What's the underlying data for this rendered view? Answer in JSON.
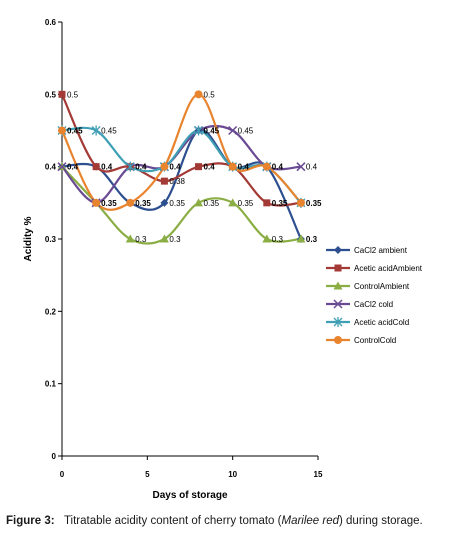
{
  "chart_data": {
    "type": "line",
    "xlabel": "Days of storage",
    "ylabel": "Acidity %",
    "xlim": [
      0,
      15
    ],
    "ylim": [
      0,
      0.6
    ],
    "x_ticks": [
      "0",
      "5",
      "10",
      "15"
    ],
    "y_ticks": [
      "0",
      "0.1",
      "0.2",
      "0.3",
      "0.4",
      "0.5",
      "0.6"
    ],
    "smooth": true,
    "grid": false,
    "legend_position": "right",
    "series": [
      {
        "name": "CaCl2 ambient",
        "color": "#2E4F8F",
        "marker": "diamond",
        "x": [
          0,
          2,
          4,
          6,
          8,
          10,
          12,
          14
        ],
        "values": [
          0.4,
          0.4,
          0.35,
          0.35,
          0.45,
          0.4,
          0.4,
          0.3
        ]
      },
      {
        "name": "Acetic acidAmbient",
        "color": "#A33A36",
        "marker": "square",
        "x": [
          0,
          2,
          4,
          6,
          8,
          10,
          12,
          14
        ],
        "values": [
          0.5,
          0.4,
          0.4,
          0.38,
          0.4,
          0.4,
          0.35,
          0.35
        ]
      },
      {
        "name": "ControlAmbient",
        "color": "#8AAE44",
        "marker": "triangle",
        "x": [
          0,
          2,
          4,
          6,
          8,
          10,
          12,
          14
        ],
        "values": [
          0.4,
          0.35,
          0.3,
          0.3,
          0.35,
          0.35,
          0.3,
          0.3
        ]
      },
      {
        "name": "CaCl2 cold",
        "color": "#6A4A93",
        "marker": "x",
        "x": [
          0,
          2,
          4,
          6,
          8,
          10,
          12,
          14
        ],
        "values": [
          0.4,
          0.35,
          0.4,
          0.4,
          0.45,
          0.45,
          0.4,
          0.4
        ]
      },
      {
        "name": "Acetic acidCold",
        "color": "#3E9FB5",
        "marker": "star",
        "x": [
          0,
          2,
          4,
          6,
          8,
          10,
          12,
          14
        ],
        "values": [
          0.45,
          0.45,
          0.4,
          0.4,
          0.45,
          0.4,
          0.4,
          0.35
        ]
      },
      {
        "name": "ControlCold",
        "color": "#E8832E",
        "marker": "circle",
        "x": [
          0,
          2,
          4,
          6,
          8,
          10,
          12,
          14
        ],
        "values": [
          0.45,
          0.35,
          0.35,
          0.4,
          0.5,
          0.4,
          0.4,
          0.35
        ]
      }
    ],
    "data_labels": [
      {
        "x": 0,
        "y": 0.5,
        "text": "0.5",
        "bold": false
      },
      {
        "x": 0,
        "y": 0.45,
        "text": "0.45",
        "bold": true
      },
      {
        "x": 2,
        "y": 0.45,
        "text": "0.45",
        "bold": false
      },
      {
        "x": 0,
        "y": 0.4,
        "text": "0.4",
        "bold": true
      },
      {
        "x": 2,
        "y": 0.4,
        "text": "0.4",
        "bold": true
      },
      {
        "x": 4,
        "y": 0.4,
        "text": "0.4",
        "bold": true
      },
      {
        "x": 6,
        "y": 0.4,
        "text": "0.4",
        "bold": true
      },
      {
        "x": 6,
        "y": 0.38,
        "text": "0.38",
        "bold": false
      },
      {
        "x": 8,
        "y": 0.5,
        "text": "0.5",
        "bold": false
      },
      {
        "x": 8,
        "y": 0.45,
        "text": "0.45",
        "bold": true
      },
      {
        "x": 8,
        "y": 0.4,
        "text": "0.4",
        "bold": true
      },
      {
        "x": 10,
        "y": 0.45,
        "text": "0.45",
        "bold": false
      },
      {
        "x": 10,
        "y": 0.4,
        "text": "0.4",
        "bold": true
      },
      {
        "x": 12,
        "y": 0.4,
        "text": "0.4",
        "bold": true
      },
      {
        "x": 14,
        "y": 0.4,
        "text": "0.4",
        "bold": false
      },
      {
        "x": 2,
        "y": 0.35,
        "text": "0.35",
        "bold": true
      },
      {
        "x": 4,
        "y": 0.35,
        "text": "0.35",
        "bold": true
      },
      {
        "x": 6,
        "y": 0.35,
        "text": "0.35",
        "bold": false
      },
      {
        "x": 8,
        "y": 0.35,
        "text": "0.35",
        "bold": false
      },
      {
        "x": 10,
        "y": 0.35,
        "text": "0.35",
        "bold": false
      },
      {
        "x": 12,
        "y": 0.35,
        "text": "0.35",
        "bold": true
      },
      {
        "x": 14,
        "y": 0.35,
        "text": "0.35",
        "bold": true
      },
      {
        "x": 4,
        "y": 0.3,
        "text": "0.3",
        "bold": false
      },
      {
        "x": 6,
        "y": 0.3,
        "text": "0.3",
        "bold": false
      },
      {
        "x": 12,
        "y": 0.3,
        "text": "0.3",
        "bold": false
      },
      {
        "x": 14,
        "y": 0.3,
        "text": "0.3",
        "bold": true
      }
    ]
  },
  "caption": {
    "figure_label": "Figure 3:",
    "text_before": "Titratable acidity content of cherry tomato (",
    "species": "Marilee red",
    "text_after": ") during storage."
  }
}
